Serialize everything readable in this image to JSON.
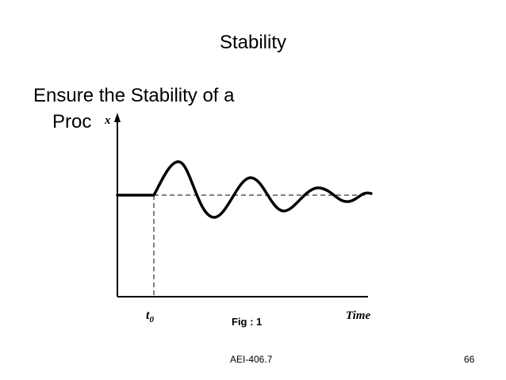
{
  "slide": {
    "title": "Stability",
    "body_line1": "Ensure the Stability of a",
    "body_line2": "Proc",
    "figure_caption": "Fig : 1",
    "footer_code": "AEI-406.7",
    "page_number": "66"
  },
  "figure": {
    "y_axis_label": "x",
    "x_axis_label": "Time",
    "t0_label": "t",
    "t0_subscript": "0",
    "line_color": "#000000"
  }
}
